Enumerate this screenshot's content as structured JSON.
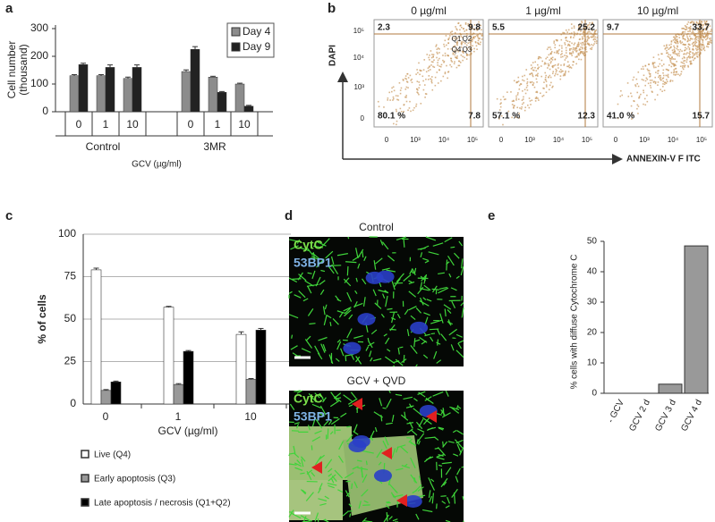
{
  "panels": [
    "a",
    "b",
    "c",
    "d",
    "e"
  ],
  "chart_data": [
    {
      "type": "bar",
      "ylabel_lines": [
        "Cell number",
        "(thousand)"
      ],
      "xlabel": "GCV (µg/ml)",
      "categories": [
        "0",
        "1",
        "10",
        "0",
        "1",
        "10"
      ],
      "groups": [
        "Control",
        "3MR"
      ],
      "series": [
        {
          "name": "Day 4",
          "color": "#8c8c8c",
          "values": [
            130,
            130,
            120,
            145,
            125,
            100
          ],
          "errors": [
            4,
            4,
            5,
            6,
            3,
            3
          ]
        },
        {
          "name": "Day 9",
          "color": "#222222",
          "values": [
            170,
            160,
            160,
            225,
            70,
            20
          ],
          "errors": [
            5,
            9,
            9,
            10,
            3,
            3
          ]
        }
      ],
      "ylim": [
        0,
        300
      ],
      "yticks": [
        0,
        100,
        200,
        300
      ]
    },
    {
      "type": "bar",
      "ylabel": "% of cells",
      "xlabel": "GCV (µg/ml)",
      "categories": [
        "0",
        "1",
        "10"
      ],
      "series": [
        {
          "name": "Live (Q4)",
          "color": "#ffffff",
          "values": [
            79,
            57,
            41
          ],
          "errors": [
            1,
            0.5,
            1.5
          ]
        },
        {
          "name": "Early apoptosis (Q3)",
          "color": "#999999",
          "values": [
            8,
            11.5,
            14.5
          ],
          "errors": [
            0.5,
            0.5,
            0.5
          ]
        },
        {
          "name": "Late apoptosis / necrosis (Q1+Q2)",
          "color": "#000000",
          "values": [
            13,
            31,
            43.5
          ],
          "errors": [
            0.5,
            0.5,
            1
          ]
        }
      ],
      "ylim": [
        0,
        100
      ],
      "yticks": [
        0,
        25,
        50,
        75,
        100
      ],
      "grid": true
    },
    {
      "type": "bar",
      "ylabel": "% cells with diffuse Cytochrome C",
      "categories": [
        "- GCV",
        "GCV 2 d",
        "GCV 3 d",
        "GCV 4 d"
      ],
      "values": [
        0,
        0,
        3,
        48.5
      ],
      "color": "#999999",
      "ylim": [
        0,
        50
      ],
      "yticks": [
        0,
        10,
        20,
        30,
        40,
        50
      ]
    }
  ],
  "flow": {
    "ylabel": "DAPI",
    "xlabel": "ANNEXIN-V F ITC",
    "yticks": [
      "10⁵",
      "10⁴",
      "10³",
      "0"
    ],
    "xticks": [
      "0",
      "10³",
      "10⁴",
      "10⁵"
    ],
    "quadrant_names": [
      "Q1",
      "Q2",
      "Q4",
      "Q3"
    ],
    "plots": [
      {
        "title": "0 µg/ml",
        "quadrants": [
          "2.3",
          "9.8",
          "80.1 %",
          "7.8"
        ]
      },
      {
        "title": "1 µg/ml",
        "quadrants": [
          "5.5",
          "25.2",
          "57.1 %",
          "12.3"
        ]
      },
      {
        "title": "10 µg/ml",
        "quadrants": [
          "9.7",
          "33.7",
          "41.0 %",
          "15.7"
        ]
      }
    ]
  },
  "microscopy": {
    "titles": [
      "Control",
      "GCV + QVD"
    ],
    "stains": [
      "CytC",
      "53BP1"
    ]
  }
}
